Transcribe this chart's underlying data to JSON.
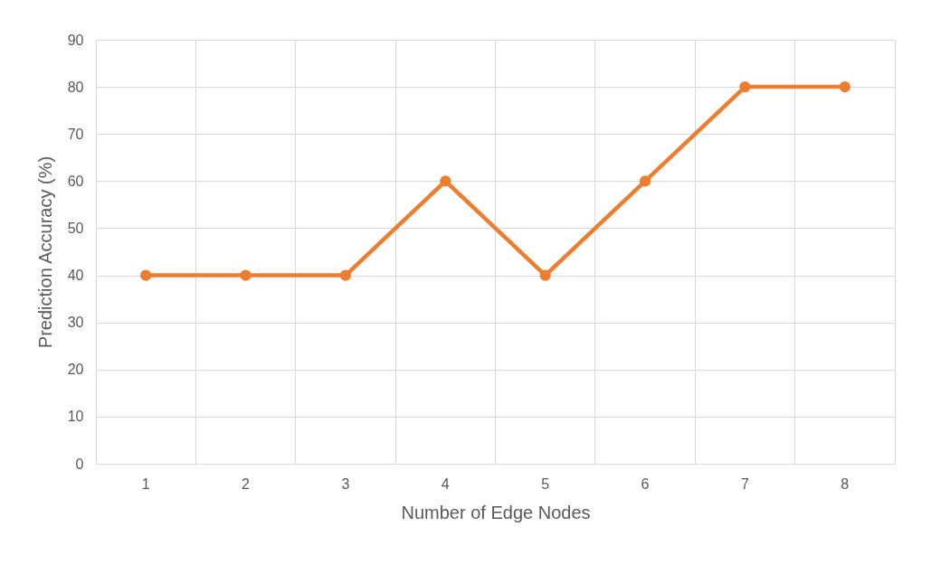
{
  "chart_data": {
    "type": "line",
    "xlabel": "Number of Edge Nodes",
    "ylabel": "Prediction Accuracy (%)",
    "categories": [
      "1",
      "2",
      "3",
      "4",
      "5",
      "6",
      "7",
      "8"
    ],
    "series": [
      {
        "color": "#ed7d31",
        "values": [
          40,
          40,
          40,
          60,
          40,
          60,
          80,
          80
        ]
      }
    ],
    "ylim": [
      0,
      90
    ],
    "yticks": [
      0,
      10,
      20,
      30,
      40,
      50,
      60,
      70,
      80,
      90
    ],
    "grid": true,
    "marker": "circle",
    "line_style": "solid"
  }
}
